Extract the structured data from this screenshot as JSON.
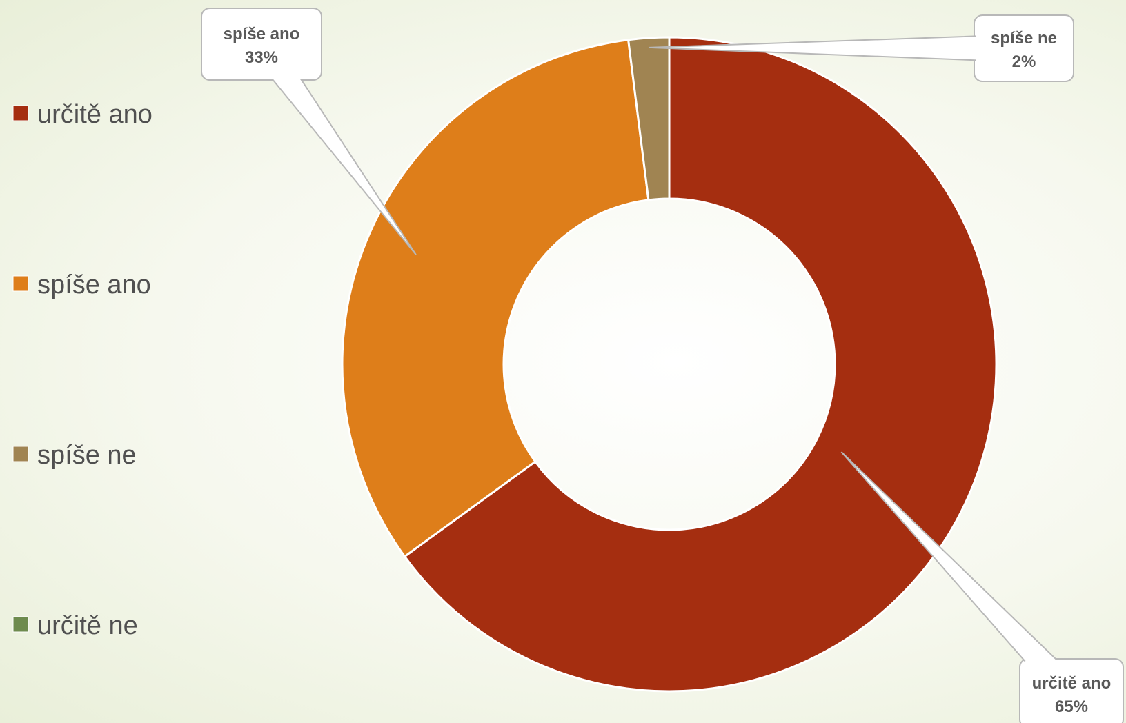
{
  "chart_data": {
    "type": "pie",
    "variant": "doughnut",
    "categories": [
      "určitě ano",
      "spíše ano",
      "spíše ne",
      "určitě ne"
    ],
    "values": [
      65,
      33,
      2,
      0
    ],
    "value_format": "percent",
    "colors": [
      "#A52E10",
      "#DE7E1A",
      "#A08452",
      "#6E8B4E"
    ],
    "legend_position": "left",
    "labels": [
      {
        "name": "určitě ano",
        "value": "65%"
      },
      {
        "name": "spíše ano",
        "value": "33%"
      },
      {
        "name": "spíše ne",
        "value": "2%"
      }
    ]
  }
}
